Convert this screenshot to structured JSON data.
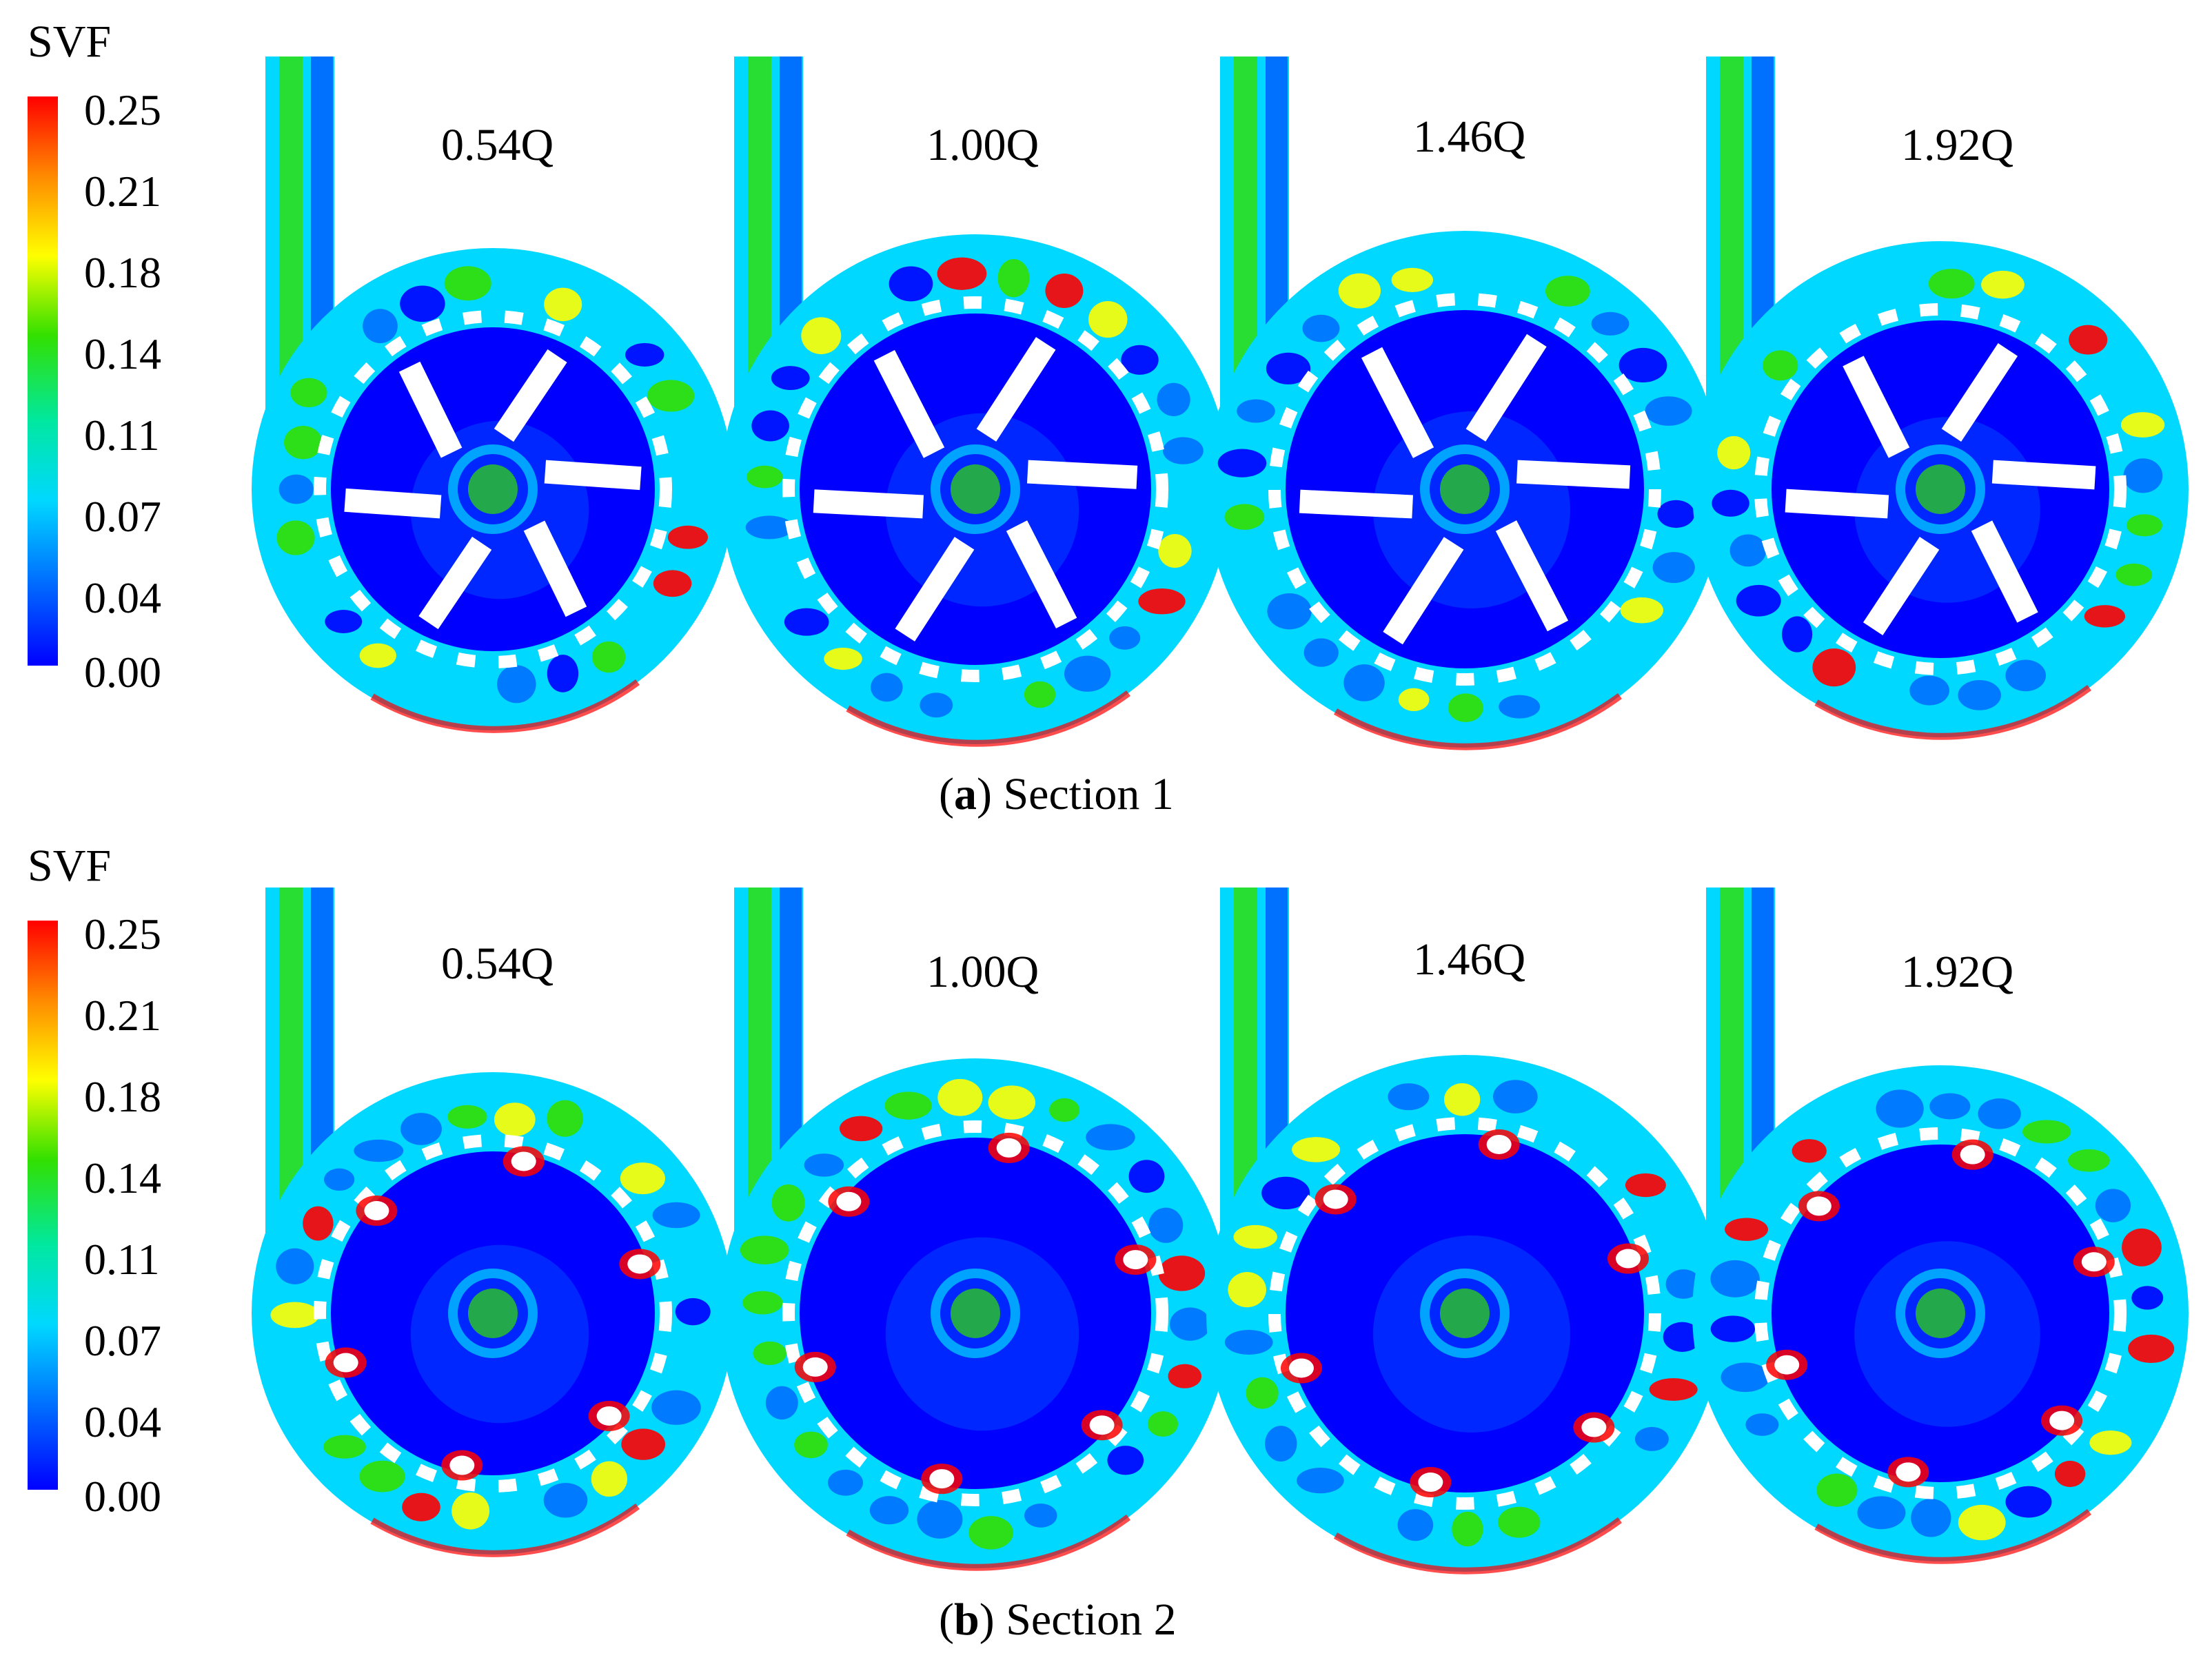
{
  "legend": {
    "title": "SVF",
    "ticks": [
      "0.25",
      "0.21",
      "0.18",
      "0.14",
      "0.11",
      "0.07",
      "0.04",
      "0.00"
    ]
  },
  "conditions": [
    "0.54Q",
    "1.00Q",
    "1.46Q",
    "1.92Q"
  ],
  "sections": [
    {
      "letter": "a",
      "label": "Section 1"
    },
    {
      "letter": "b",
      "label": "Section 2"
    }
  ],
  "colors": {
    "max": "#ff0000",
    "high": "#ffff00",
    "mid": "#32e000",
    "mid_low": "#00d8ff",
    "low": "#0070ff",
    "min": "#0000ff"
  }
}
